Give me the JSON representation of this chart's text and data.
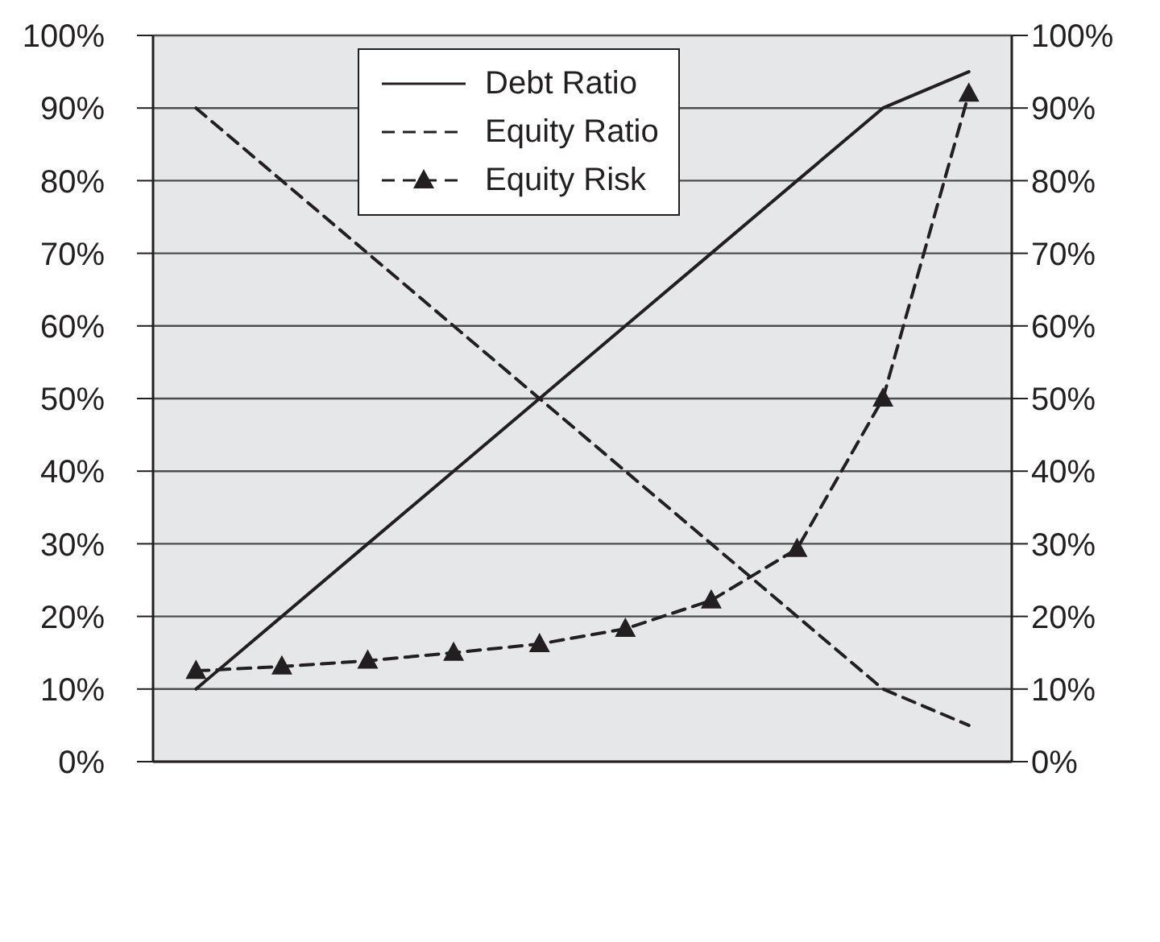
{
  "chart_data": {
    "type": "line",
    "categories": [
      null,
      null,
      null,
      null,
      null,
      null,
      null,
      null,
      null,
      null
    ],
    "series": [
      {
        "name": "Debt Ratio",
        "color": "#231f20",
        "line_style": "solid",
        "marker": "none",
        "values": [
          10,
          20,
          30,
          40,
          50,
          60,
          70,
          80,
          90,
          95
        ]
      },
      {
        "name": "Equity Ratio",
        "color": "#231f20",
        "line_style": "dashed",
        "marker": "none",
        "values": [
          90,
          80,
          70,
          60,
          50,
          40,
          30,
          20,
          10,
          5
        ]
      },
      {
        "name": "Equity Risk",
        "color": "#231f20",
        "line_style": "dashed",
        "marker": "triangle",
        "values": [
          12.5,
          13.1,
          13.9,
          15,
          16.2,
          18.3,
          22.2,
          29.3,
          50,
          92
        ]
      }
    ],
    "ylim": [
      0,
      100
    ],
    "yticks": [
      {
        "value": 0,
        "label": "0%"
      },
      {
        "value": 10,
        "label": "10%"
      },
      {
        "value": 20,
        "label": "20%"
      },
      {
        "value": 30,
        "label": "30%"
      },
      {
        "value": 40,
        "label": "40%"
      },
      {
        "value": 50,
        "label": "50%"
      },
      {
        "value": 60,
        "label": "60%"
      },
      {
        "value": 70,
        "label": "70%"
      },
      {
        "value": 80,
        "label": "80%"
      },
      {
        "value": 90,
        "label": "90%"
      },
      {
        "value": 100,
        "label": "100%"
      }
    ],
    "y2lim": [
      0,
      100
    ],
    "y2ticks": [
      {
        "value": 0,
        "label": "0%"
      },
      {
        "value": 10,
        "label": "10%"
      },
      {
        "value": 20,
        "label": "20%"
      },
      {
        "value": 30,
        "label": "30%"
      },
      {
        "value": 40,
        "label": "40%"
      },
      {
        "value": 50,
        "label": "50%"
      },
      {
        "value": 60,
        "label": "60%"
      },
      {
        "value": 70,
        "label": "70%"
      },
      {
        "value": 80,
        "label": "80%"
      },
      {
        "value": 90,
        "label": "90%"
      },
      {
        "value": 100,
        "label": "100%"
      }
    ],
    "grid": "y",
    "legend": "top"
  }
}
